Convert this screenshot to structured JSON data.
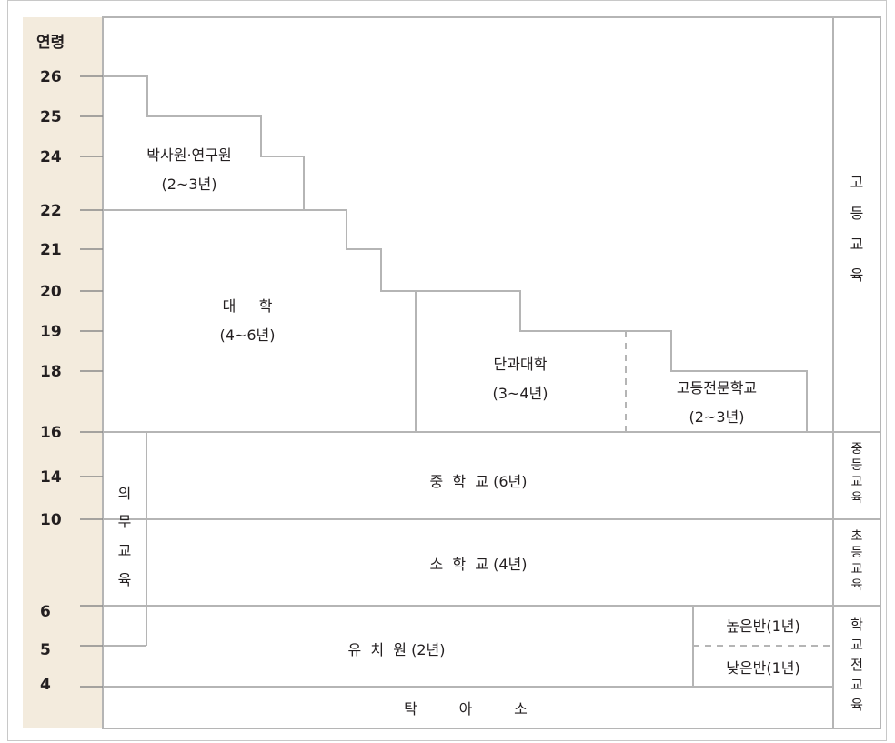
{
  "age_header": "연령",
  "ages": [
    "26",
    "25",
    "24",
    "22",
    "21",
    "20",
    "19",
    "18",
    "16",
    "14",
    "10",
    "6",
    "5",
    "4"
  ],
  "boxes": {
    "doctoral": [
      "박사원·연구원",
      "(2~3년)"
    ],
    "university": [
      "대     학",
      "(4~6년)"
    ],
    "college": [
      "단과대학",
      "(3~4년)"
    ],
    "technical": [
      "고등전문학교",
      "(2~3년)"
    ],
    "compulsory": [
      "의",
      "무",
      "교",
      "육"
    ],
    "middle": "중  학  교 (6년)",
    "primary": "소  학  교 (4년)",
    "kindergarten": "유  치  원 (2년)",
    "senior_class": "높은반(1년)",
    "junior_class": "낮은반(1년)",
    "nursery": "탁         아         소"
  },
  "stages": {
    "higher": [
      "고",
      "등",
      "교",
      "육"
    ],
    "secondary": [
      "중",
      "등",
      "교",
      "육"
    ],
    "elementary": [
      "초",
      "등",
      "교",
      "육"
    ],
    "preschool": [
      "학",
      "교",
      "전",
      "교",
      "육"
    ]
  }
}
